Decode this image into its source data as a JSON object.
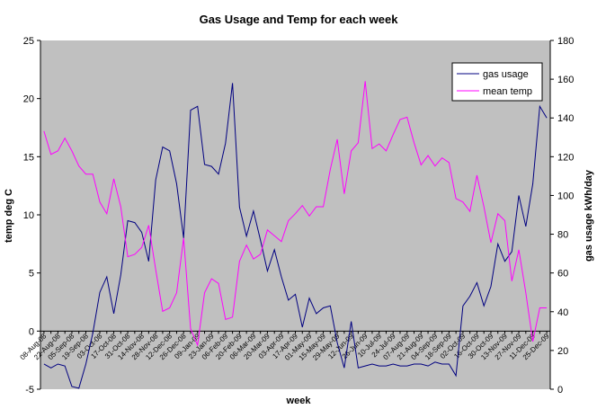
{
  "chart_data": {
    "type": "line",
    "title": "Gas Usage and Temp for each week",
    "x_label": "week",
    "y_label": "temp deg C",
    "y2_label": "gas usage kWh/day",
    "categories": [
      "08-Aug-08",
      null,
      "22-Aug-08",
      null,
      "05-Sep-08",
      null,
      "19-Sep-08",
      null,
      "03-Oct-08",
      null,
      "17-Oct-08",
      null,
      "31-Oct-08",
      null,
      "14-Nov-08",
      null,
      "28-Nov-08",
      null,
      "12-Dec-08",
      null,
      "26-Dec-08",
      null,
      "09-Jan-09",
      null,
      "23-Jan-09",
      null,
      "06-Feb-09",
      null,
      "20-Feb-09",
      null,
      "06-Mar-09",
      null,
      "20-Mar-09",
      null,
      "03-Apr-09",
      null,
      "17-Apr-09",
      null,
      "01-May-09",
      null,
      "15-May-09",
      null,
      "29-May-09",
      null,
      "12-Jun-09",
      null,
      "26-Jun-09",
      null,
      "10-Jul-09",
      null,
      "24-Jul-09",
      null,
      "07-Aug-09",
      null,
      "21-Aug-09",
      null,
      "04-Sep-09",
      null,
      "18-Sep-09",
      null,
      "02-Oct-09",
      null,
      "16-Oct-09",
      null,
      "30-Oct-09",
      null,
      "13-Nov-09",
      null,
      "27-Nov-09",
      null,
      "11-Dec-09",
      null,
      "25-Dec-09"
    ],
    "series": [
      {
        "name": "gas usage",
        "color": "#000080",
        "axis": "y2",
        "values": [
          13,
          11,
          13,
          12,
          1.4,
          0.5,
          13,
          29,
          50,
          58,
          39,
          59,
          87,
          86,
          81,
          66,
          108,
          125,
          123,
          106,
          78,
          144,
          146,
          116,
          115,
          111,
          127,
          158,
          94,
          79,
          92,
          77,
          61,
          72,
          58,
          46,
          49,
          32,
          47,
          39,
          42,
          43,
          24,
          11,
          35,
          11,
          12,
          13,
          12,
          12,
          13,
          12,
          12,
          13,
          13,
          12,
          14,
          13,
          13,
          7,
          43,
          48,
          55,
          43,
          53,
          75,
          66,
          71,
          100,
          84,
          106,
          146,
          140
        ]
      },
      {
        "name": "mean temp",
        "color": "#ff00ff",
        "values": [
          17.2,
          15.2,
          15.5,
          16.6,
          15.5,
          14.2,
          13.5,
          13.5,
          11.1,
          10.1,
          13.1,
          10.7,
          6.4,
          6.6,
          7.2,
          9.1,
          5.3,
          1.7,
          2.0,
          3.3,
          8.0,
          0.2,
          -1.2,
          3.3,
          4.5,
          4.1,
          1.0,
          1.2,
          6.0,
          7.4,
          6.2,
          6.6,
          8.7,
          8.2,
          7.7,
          9.5,
          10.1,
          10.8,
          9.9,
          10.7,
          10.7,
          13.9,
          16.5,
          11.8,
          15.5,
          16.2,
          21.5,
          15.7,
          16.1,
          15.5,
          16.9,
          18.2,
          18.4,
          16.2,
          14.3,
          15.1,
          14.2,
          14.9,
          14.5,
          11.4,
          11.1,
          10.3,
          13.4,
          10.7,
          7.6,
          10.1,
          9.5,
          4.3,
          7.0,
          3.3,
          -0.9,
          2.0,
          2.0
        ]
      }
    ],
    "ylim": [
      -5,
      25
    ],
    "yticks": [
      -5,
      0,
      5,
      10,
      15,
      20,
      25
    ],
    "y2lim": [
      0,
      180
    ],
    "y2ticks": [
      0,
      20,
      40,
      60,
      80,
      100,
      120,
      140,
      160,
      180
    ],
    "plot_background": "#c0c0c0",
    "legend": "upper right"
  }
}
